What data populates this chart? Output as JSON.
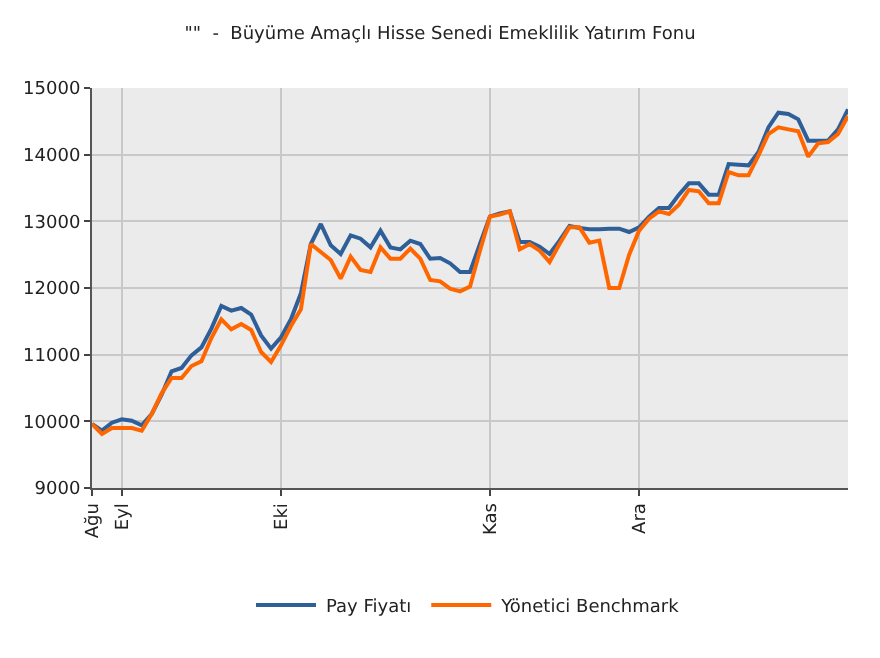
{
  "chart_data": {
    "type": "line",
    "title": "\"\"  -  Büyüme Amaçlı Hisse Senedi Emeklilik Yatırım Fonu",
    "categories": [
      "Ağu",
      null,
      null,
      "Eyl",
      null,
      null,
      null,
      null,
      null,
      null,
      null,
      null,
      null,
      null,
      null,
      null,
      null,
      null,
      null,
      "Eki",
      null,
      null,
      null,
      null,
      null,
      null,
      null,
      null,
      null,
      null,
      null,
      null,
      null,
      null,
      null,
      null,
      null,
      null,
      null,
      null,
      "Kas",
      null,
      null,
      null,
      null,
      null,
      null,
      null,
      null,
      null,
      null,
      null,
      null,
      null,
      null,
      "Ara",
      null,
      null,
      null,
      null,
      null,
      null,
      null,
      null,
      null,
      null,
      null,
      null,
      null,
      null,
      null,
      null,
      null,
      null,
      null,
      null,
      null
    ],
    "ylim": [
      9000,
      15000
    ],
    "yticks": [
      9000,
      10000,
      11000,
      12000,
      13000,
      14000,
      15000
    ],
    "grid": true,
    "legend": "bottom",
    "line_style": "solid",
    "series": [
      {
        "name": "Pay Fiyatı",
        "color": "#2f5f98",
        "values": [
          9960,
          9860,
          9980,
          10030,
          10010,
          9940,
          10110,
          10400,
          10750,
          10800,
          10990,
          11110,
          11390,
          11730,
          11660,
          11700,
          11600,
          11290,
          11090,
          11260,
          11530,
          11920,
          12660,
          12960,
          12640,
          12510,
          12790,
          12740,
          12610,
          12860,
          12610,
          12580,
          12710,
          12660,
          12440,
          12450,
          12370,
          12240,
          12240,
          12660,
          13070,
          13120,
          13150,
          12690,
          12690,
          12620,
          12510,
          12710,
          12930,
          12900,
          12880,
          12880,
          12890,
          12890,
          12840,
          12910,
          13070,
          13200,
          13200,
          13400,
          13570,
          13570,
          13400,
          13400,
          13860,
          13850,
          13840,
          14040,
          14410,
          14630,
          14610,
          14530,
          14210,
          14210,
          14210,
          14380,
          14680
        ]
      },
      {
        "name": "Yönetici Benchmark",
        "color": "#ff6600",
        "values": [
          9960,
          9810,
          9900,
          9900,
          9900,
          9860,
          10110,
          10420,
          10650,
          10650,
          10830,
          10900,
          11250,
          11530,
          11380,
          11460,
          11370,
          11040,
          10890,
          11140,
          11430,
          11680,
          12660,
          12540,
          12420,
          12140,
          12470,
          12270,
          12240,
          12610,
          12440,
          12440,
          12590,
          12440,
          12120,
          12100,
          11990,
          11950,
          12020,
          12560,
          13070,
          13100,
          13150,
          12580,
          12660,
          12560,
          12390,
          12660,
          12910,
          12910,
          12680,
          12710,
          12000,
          12000,
          12500,
          12860,
          13040,
          13150,
          13110,
          13250,
          13470,
          13450,
          13270,
          13270,
          13740,
          13690,
          13690,
          13990,
          14310,
          14410,
          14380,
          14350,
          13970,
          14170,
          14190,
          14310,
          14580
        ]
      }
    ]
  }
}
